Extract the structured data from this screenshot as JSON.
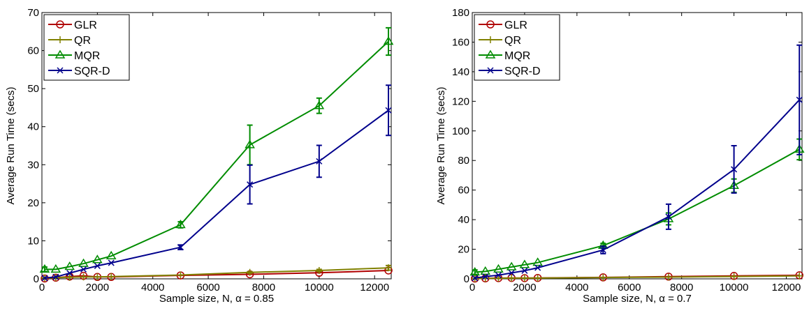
{
  "chart_data": [
    {
      "type": "line",
      "xlabel": "Sample size, N, α = 0.85",
      "ylabel": "Average Run Time (secs)",
      "xlim": [
        0,
        12600
      ],
      "ylim": [
        0,
        70
      ],
      "xticks": [
        0,
        2000,
        4000,
        6000,
        8000,
        10000,
        12000
      ],
      "yticks": [
        0,
        10,
        20,
        30,
        40,
        50,
        60,
        70
      ],
      "grid": false,
      "legend_position": "top-left",
      "series": [
        {
          "name": "GLR",
          "color": "#b00000",
          "marker": "circle",
          "points": [
            {
              "x": 100,
              "y": 0.1,
              "err": 0
            },
            {
              "x": 500,
              "y": 0.3,
              "err": 0
            },
            {
              "x": 1000,
              "y": 0.6,
              "err": 0
            },
            {
              "x": 1500,
              "y": 0.8,
              "err": 0
            },
            {
              "x": 2000,
              "y": 0.5,
              "err": 0
            },
            {
              "x": 2500,
              "y": 0.5,
              "err": 0
            },
            {
              "x": 5000,
              "y": 0.9,
              "err": 0
            },
            {
              "x": 7500,
              "y": 1.2,
              "err": 0
            },
            {
              "x": 10000,
              "y": 1.6,
              "err": 0
            },
            {
              "x": 12500,
              "y": 2.2,
              "err": 0
            }
          ]
        },
        {
          "name": "QR",
          "color": "#808000",
          "marker": "plus",
          "points": [
            {
              "x": 100,
              "y": 0.2,
              "err": 0
            },
            {
              "x": 500,
              "y": 0.3,
              "err": 0
            },
            {
              "x": 1000,
              "y": 0.4,
              "err": 0
            },
            {
              "x": 1500,
              "y": 0.5,
              "err": 0
            },
            {
              "x": 2000,
              "y": 0.5,
              "err": 0
            },
            {
              "x": 2500,
              "y": 0.6,
              "err": 0
            },
            {
              "x": 5000,
              "y": 1.0,
              "err": 0
            },
            {
              "x": 7500,
              "y": 1.7,
              "err": 0.2
            },
            {
              "x": 10000,
              "y": 2.2,
              "err": 0.3
            },
            {
              "x": 12500,
              "y": 2.9,
              "err": 0.6
            }
          ]
        },
        {
          "name": "MQR",
          "color": "#008c00",
          "marker": "triangle",
          "points": [
            {
              "x": 100,
              "y": 2.5,
              "err": 0.6
            },
            {
              "x": 500,
              "y": 2.5,
              "err": 0
            },
            {
              "x": 1000,
              "y": 3.2,
              "err": 0
            },
            {
              "x": 1500,
              "y": 4.0,
              "err": 0
            },
            {
              "x": 2000,
              "y": 5.0,
              "err": 0
            },
            {
              "x": 2500,
              "y": 6.0,
              "err": 0
            },
            {
              "x": 5000,
              "y": 14.2,
              "err": 0.8
            },
            {
              "x": 7500,
              "y": 35.2,
              "err": 5.2
            },
            {
              "x": 10000,
              "y": 45.5,
              "err": 2.0
            },
            {
              "x": 12500,
              "y": 62.4,
              "err": 3.6
            }
          ]
        },
        {
          "name": "SQR-D",
          "color": "#00008c",
          "marker": "cross",
          "points": [
            {
              "x": 100,
              "y": 0.2,
              "err": 0
            },
            {
              "x": 500,
              "y": 0.5,
              "err": 0
            },
            {
              "x": 1000,
              "y": 1.5,
              "err": 0
            },
            {
              "x": 1500,
              "y": 2.5,
              "err": 0
            },
            {
              "x": 2000,
              "y": 3.4,
              "err": 0
            },
            {
              "x": 2500,
              "y": 4.2,
              "err": 0
            },
            {
              "x": 5000,
              "y": 8.3,
              "err": 0.6
            },
            {
              "x": 7500,
              "y": 24.8,
              "err": 5.1
            },
            {
              "x": 10000,
              "y": 30.9,
              "err": 4.2
            },
            {
              "x": 12500,
              "y": 44.3,
              "err": 6.6
            }
          ]
        }
      ]
    },
    {
      "type": "line",
      "xlabel": "Sample size, N, α = 0.7",
      "ylabel": "Average Run Time (secs)",
      "xlim": [
        0,
        12600
      ],
      "ylim": [
        0,
        180
      ],
      "xticks": [
        0,
        2000,
        4000,
        6000,
        8000,
        10000,
        12000
      ],
      "yticks": [
        0,
        20,
        40,
        60,
        80,
        100,
        120,
        140,
        160,
        180
      ],
      "grid": false,
      "legend_position": "top-left",
      "series": [
        {
          "name": "GLR",
          "color": "#b00000",
          "marker": "circle",
          "points": [
            {
              "x": 100,
              "y": 0.2,
              "err": 0
            },
            {
              "x": 500,
              "y": 0.3,
              "err": 0
            },
            {
              "x": 1000,
              "y": 0.5,
              "err": 0
            },
            {
              "x": 1500,
              "y": 0.6,
              "err": 0
            },
            {
              "x": 2000,
              "y": 0.5,
              "err": 0
            },
            {
              "x": 2500,
              "y": 0.6,
              "err": 0
            },
            {
              "x": 5000,
              "y": 1.0,
              "err": 0
            },
            {
              "x": 7500,
              "y": 1.5,
              "err": 0
            },
            {
              "x": 10000,
              "y": 2.0,
              "err": 0
            },
            {
              "x": 12500,
              "y": 2.4,
              "err": 0
            }
          ]
        },
        {
          "name": "QR",
          "color": "#808000",
          "marker": "plus",
          "points": [
            {
              "x": 100,
              "y": 0.2,
              "err": 0
            },
            {
              "x": 500,
              "y": 0.3,
              "err": 0
            },
            {
              "x": 1000,
              "y": 0.4,
              "err": 0
            },
            {
              "x": 1500,
              "y": 0.5,
              "err": 0
            },
            {
              "x": 2000,
              "y": 0.5,
              "err": 0
            },
            {
              "x": 2500,
              "y": 0.5,
              "err": 0
            },
            {
              "x": 5000,
              "y": 0.9,
              "err": 0
            },
            {
              "x": 7500,
              "y": 1.2,
              "err": 0
            },
            {
              "x": 10000,
              "y": 1.6,
              "err": 0
            },
            {
              "x": 12500,
              "y": 2.0,
              "err": 0
            }
          ]
        },
        {
          "name": "MQR",
          "color": "#008c00",
          "marker": "triangle",
          "points": [
            {
              "x": 100,
              "y": 4.5,
              "err": 1.5
            },
            {
              "x": 500,
              "y": 5.0,
              "err": 0
            },
            {
              "x": 1000,
              "y": 6.5,
              "err": 0
            },
            {
              "x": 1500,
              "y": 8.0,
              "err": 0
            },
            {
              "x": 2000,
              "y": 9.5,
              "err": 0
            },
            {
              "x": 2500,
              "y": 11.0,
              "err": 0
            },
            {
              "x": 5000,
              "y": 22.5,
              "err": 1.5
            },
            {
              "x": 7500,
              "y": 40.5,
              "err": 4.0
            },
            {
              "x": 10000,
              "y": 63.0,
              "err": 4.5
            },
            {
              "x": 12500,
              "y": 87.5,
              "err": 7.0
            }
          ]
        },
        {
          "name": "SQR-D",
          "color": "#00008c",
          "marker": "cross",
          "points": [
            {
              "x": 100,
              "y": 0.5,
              "err": 0
            },
            {
              "x": 500,
              "y": 1.5,
              "err": 0
            },
            {
              "x": 1000,
              "y": 2.5,
              "err": 0
            },
            {
              "x": 1500,
              "y": 4.0,
              "err": 0
            },
            {
              "x": 2000,
              "y": 5.5,
              "err": 0
            },
            {
              "x": 2500,
              "y": 7.5,
              "err": 0
            },
            {
              "x": 5000,
              "y": 19.5,
              "err": 2.5
            },
            {
              "x": 7500,
              "y": 42.0,
              "err": 8.5
            },
            {
              "x": 10000,
              "y": 74.0,
              "err": 16.0
            },
            {
              "x": 12500,
              "y": 121.0,
              "err": 37.0
            }
          ]
        }
      ]
    }
  ]
}
